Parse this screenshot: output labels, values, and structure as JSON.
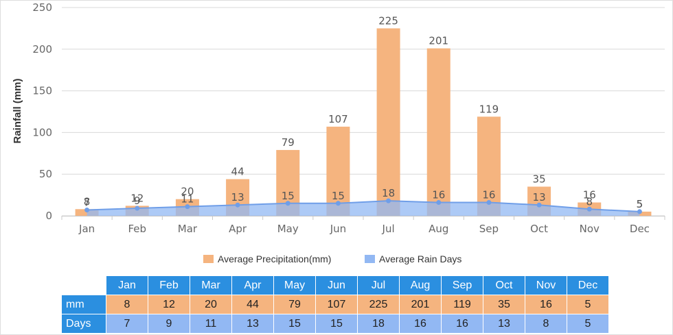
{
  "chart_data": {
    "type": "bar",
    "categories": [
      "Jan",
      "Feb",
      "Mar",
      "Apr",
      "May",
      "Jun",
      "Jul",
      "Aug",
      "Sep",
      "Oct",
      "Nov",
      "Dec"
    ],
    "series": [
      {
        "name": "Average Precipitation(mm)",
        "kind": "bar",
        "color": "#f5b47f",
        "values": [
          8,
          12,
          20,
          44,
          79,
          107,
          225,
          201,
          119,
          35,
          16,
          5
        ]
      },
      {
        "name": "Average Rain Days",
        "kind": "area",
        "color": "#92b8f3",
        "line_color": "#6f9ee8",
        "values": [
          7,
          9,
          11,
          13,
          15,
          15,
          18,
          16,
          16,
          13,
          8,
          5
        ]
      }
    ],
    "title": "",
    "xlabel": "",
    "ylabel": "Rainfall (mm)",
    "ylim": [
      0,
      250
    ],
    "yticks": [
      0,
      50,
      100,
      150,
      200,
      250
    ],
    "grid": true,
    "legend_position": "bottom"
  },
  "table": {
    "row_labels": {
      "mm": "mm",
      "days": "Days"
    }
  }
}
